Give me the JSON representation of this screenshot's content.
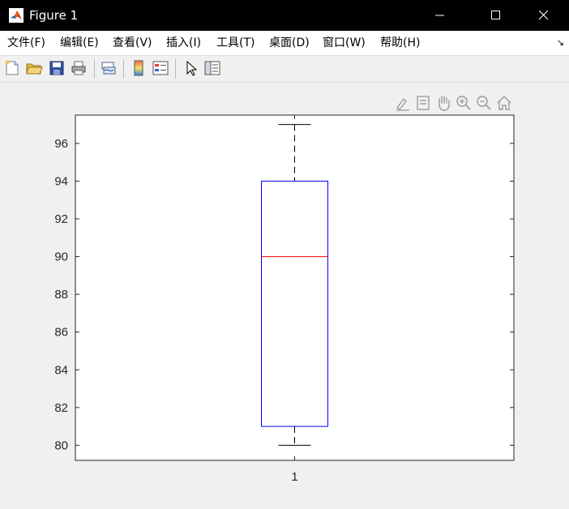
{
  "window": {
    "title": "Figure 1",
    "icon": "matlab-logo-icon"
  },
  "menubar": {
    "items": [
      {
        "label": "文件(F)"
      },
      {
        "label": "编辑(E)"
      },
      {
        "label": "查看(V)"
      },
      {
        "label": "插入(I)"
      },
      {
        "label": "工具(T)"
      },
      {
        "label": "桌面(D)"
      },
      {
        "label": "窗口(W)"
      },
      {
        "label": "帮助(H)"
      }
    ],
    "overflow_icon": "dock-arrow-icon"
  },
  "toolbar": {
    "icons": [
      "new-figure-icon",
      "open-file-icon",
      "save-icon",
      "print-icon",
      "link-plot-icon",
      "insert-colorbar-icon",
      "insert-legend-icon",
      "pointer-icon",
      "property-inspector-icon"
    ]
  },
  "axes_toolbar": {
    "icons": [
      "brush-icon",
      "data-tips-icon",
      "pan-hand-icon",
      "zoom-in-icon",
      "zoom-out-icon",
      "restore-home-icon"
    ]
  },
  "chart_data": {
    "type": "boxplot",
    "title": "",
    "xlabel": "",
    "ylabel": "",
    "categories": [
      "1"
    ],
    "ylim": [
      79.2,
      97.5
    ],
    "yticks": [
      80,
      82,
      84,
      86,
      88,
      90,
      92,
      94,
      96
    ],
    "ytick_labels": [
      "80",
      "82",
      "84",
      "86",
      "88",
      "90",
      "92",
      "94",
      "96"
    ],
    "boxes": [
      {
        "category": "1",
        "min": 80,
        "q1": 81,
        "median": 90,
        "q3": 94,
        "max": 97
      }
    ],
    "colors": {
      "box": "#0000ff",
      "median": "#ff0000",
      "whisker": "#000000",
      "axes": "#262626"
    }
  }
}
